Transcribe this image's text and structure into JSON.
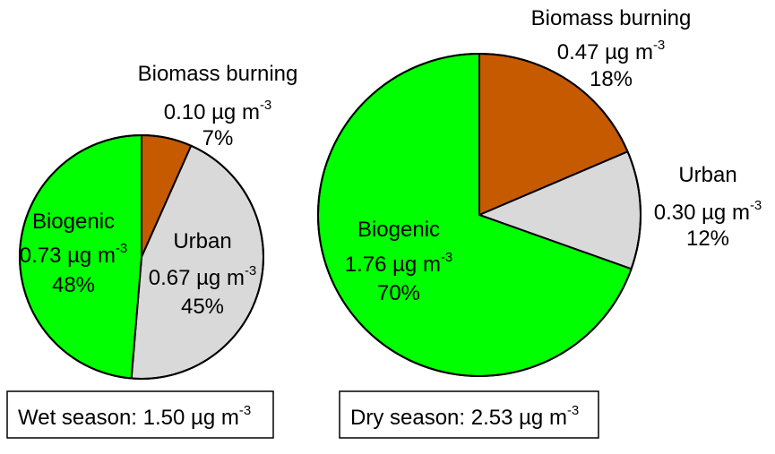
{
  "colors": {
    "biogenic": "#00ff00",
    "urban": "#d9d9d9",
    "biomass_burning": "#c55a00"
  },
  "unit": "µg m",
  "unit_exponent": "-3",
  "chart_data": [
    {
      "type": "pie",
      "season_label": "Wet season: 1.50 µg m",
      "total": 1.5,
      "slices": [
        {
          "category": "Biomass burning",
          "name_label": "Biomass burning",
          "value": 0.1,
          "value_label": "0.10 µg m",
          "percent": 7,
          "percent_label": "7%",
          "color": "#c55a00"
        },
        {
          "category": "Urban",
          "name_label": "Urban",
          "value": 0.67,
          "value_label": "0.67 µg m",
          "percent": 45,
          "percent_label": "45%",
          "color": "#d9d9d9"
        },
        {
          "category": "Biogenic",
          "name_label": "Biogenic",
          "value": 0.73,
          "value_label": "0.73 µg m",
          "percent": 48,
          "percent_label": "48%",
          "color": "#00ff00"
        }
      ]
    },
    {
      "type": "pie",
      "season_label": "Dry season: 2.53 µg m",
      "total": 2.53,
      "slices": [
        {
          "category": "Biomass burning",
          "name_label": "Biomass burning",
          "value": 0.47,
          "value_label": "0.47 µg m",
          "percent": 18,
          "percent_label": "18%",
          "color": "#c55a00"
        },
        {
          "category": "Urban",
          "name_label": "Urban",
          "value": 0.3,
          "value_label": "0.30 µg m",
          "percent": 12,
          "percent_label": "12%",
          "color": "#d9d9d9"
        },
        {
          "category": "Biogenic",
          "name_label": "Biogenic",
          "value": 1.76,
          "value_label": "1.76 µg m",
          "percent": 70,
          "percent_label": "70%",
          "color": "#00ff00"
        }
      ]
    }
  ]
}
